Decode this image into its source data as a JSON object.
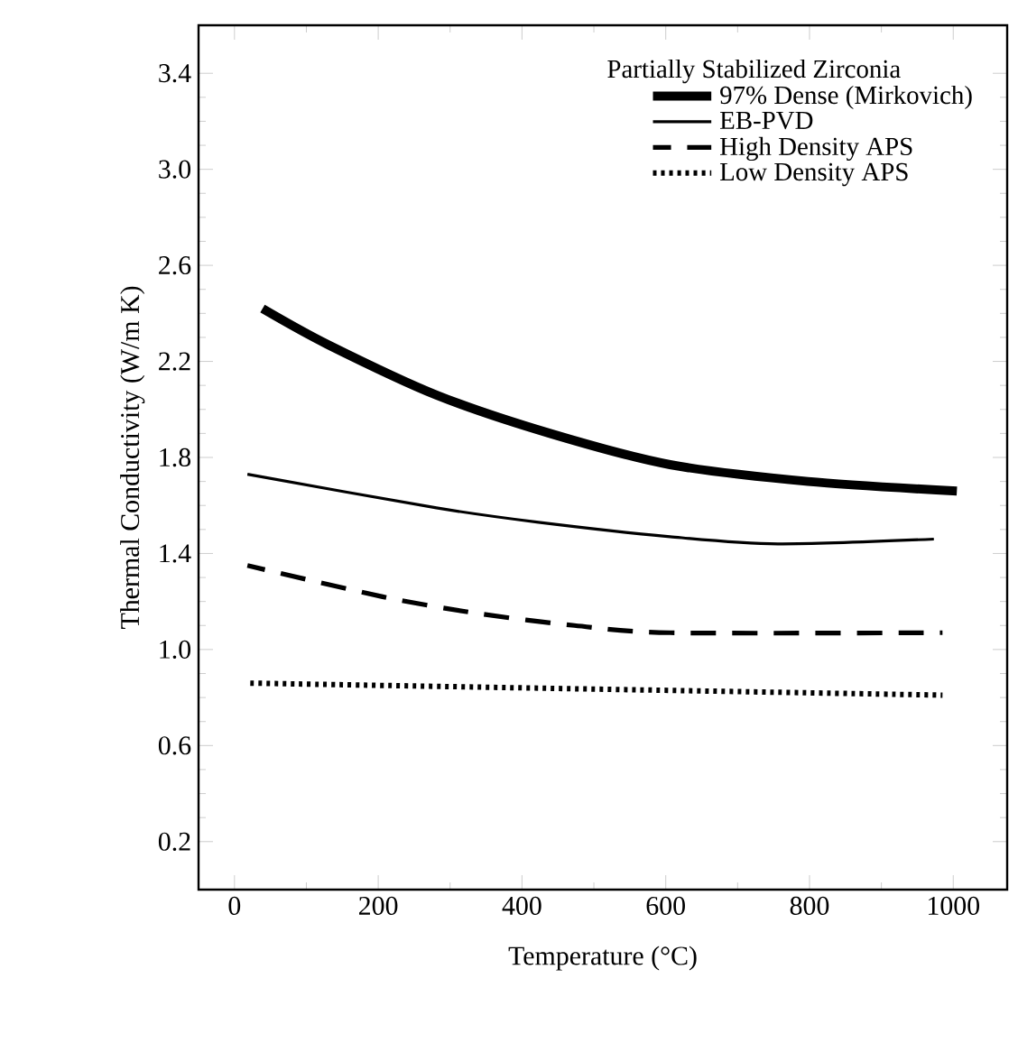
{
  "chart_data": {
    "type": "line",
    "xlabel": "Temperature (°C)",
    "ylabel": "Thermal Conductivity (W/m K)",
    "legend_title": "Partially Stabilized Zirconia",
    "xlim": [
      -50,
      1075
    ],
    "xticks": [
      0,
      200,
      400,
      600,
      800,
      1000
    ],
    "ylim": [
      0,
      3.6
    ],
    "yticks": [
      0.2,
      0.6,
      {
        "value": 1,
        "label": "1.0"
      },
      1.4,
      1.8,
      2.2,
      2.6,
      {
        "value": 3,
        "label": "3.0"
      },
      3.4
    ],
    "legend": "top right",
    "grid": false,
    "marker": "none",
    "series": [
      {
        "name": "97% Dense (Mirkovich)",
        "color": "#000000",
        "line_style": "solid",
        "x": [
          39,
          130,
          281,
          439,
          606,
          798,
          1005
        ],
        "values": [
          2.42,
          2.27,
          2.06,
          1.9,
          1.77,
          1.7,
          1.66
        ]
      },
      {
        "name": "EB-PVD",
        "color": "#000000",
        "line_style": "solid",
        "x": [
          18,
          281,
          423,
          606,
          756,
          973
        ],
        "values": [
          1.73,
          1.59,
          1.53,
          1.47,
          1.44,
          1.46
        ]
      },
      {
        "name": "High Density APS",
        "color": "#000000",
        "line_style": "dashed",
        "x": [
          18,
          206,
          339,
          473,
          606,
          985
        ],
        "values": [
          1.35,
          1.22,
          1.15,
          1.1,
          1.07,
          1.07
        ]
      },
      {
        "name": "Low Density APS",
        "color": "#000000",
        "line_style": "dotted",
        "x": [
          22,
          985
        ],
        "values": [
          0.86,
          0.81
        ]
      }
    ]
  }
}
